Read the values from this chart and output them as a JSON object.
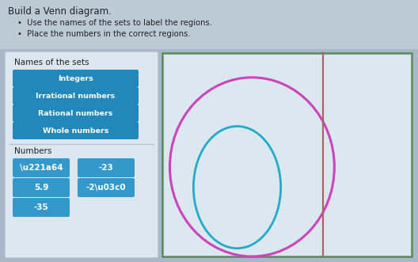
{
  "fig_bg": "#a8b8c8",
  "top_text_bg": "#c0cdd8",
  "title": "Build a Venn diagram.",
  "bullet1": "Use the names of the sets to label the regions.",
  "bullet2": "Place the numbers in the correct regions.",
  "left_panel_bg": "#dce6ee",
  "left_panel_edge": "#b0bec8",
  "diagram_bg": "#dce8f0",
  "diagram_edge_color": "#5a8a5a",
  "divider_color": "#aa6666",
  "ellipse_color": "#cc44bb",
  "inner_color": "#22aacc",
  "chip_color_set": "#2288bb",
  "chip_color_num": "#3399cc",
  "set_chips": [
    "Integers",
    "Irrational numbers",
    "Rational numbers",
    "Whole numbers"
  ],
  "num_chips": [
    {
      "text": "\\u221a64",
      "col": 0
    },
    {
      "text": "-23",
      "col": 1
    },
    {
      "text": "5.9",
      "col": 0
    },
    {
      "text": "-2\\u03c0",
      "col": 1
    },
    {
      "text": "-35",
      "col": 0
    }
  ],
  "names_of_sets_label": "Names of the sets",
  "numbers_label": "Numbers"
}
